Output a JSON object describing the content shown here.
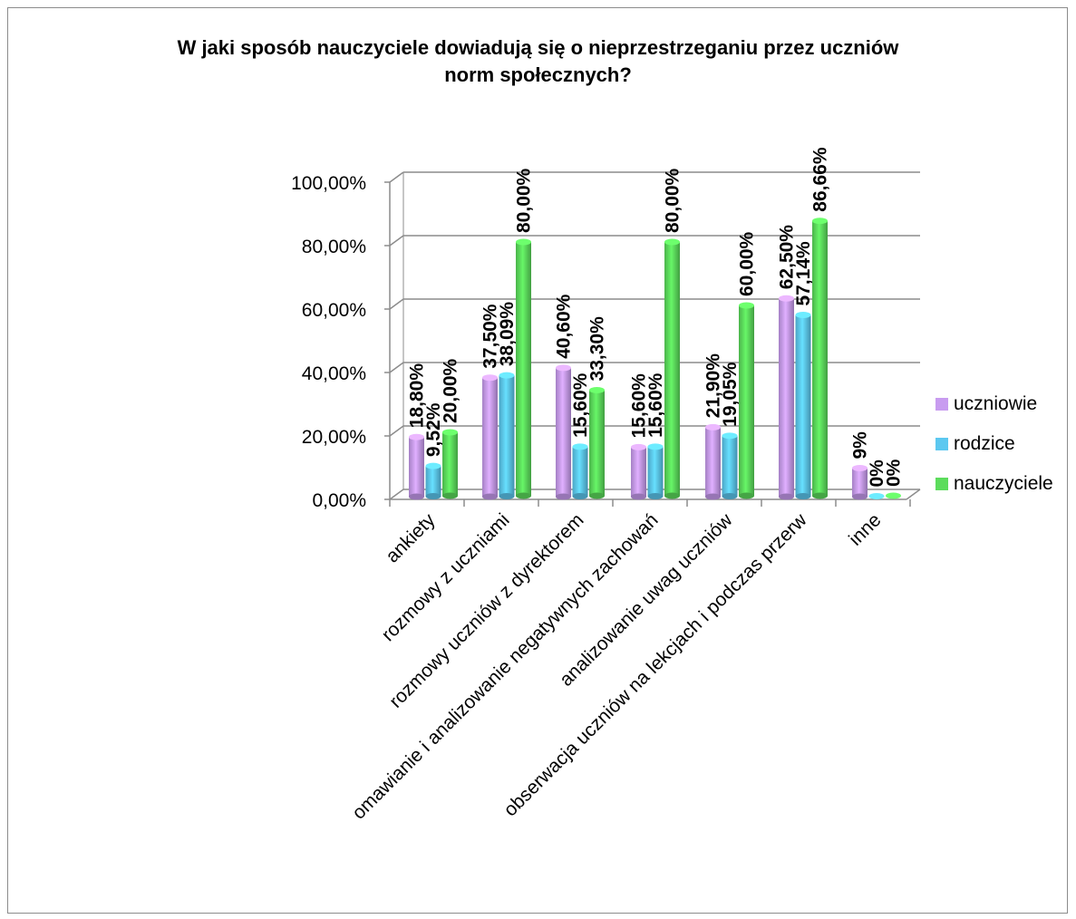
{
  "title_line1": "W jaki sposób nauczyciele dowiadują się o nieprzestrzeganiu przez uczniów",
  "title_line2": "norm społecznych?",
  "chart_data": {
    "type": "bar",
    "title": "W jaki sposób nauczyciele dowiadują się o nieprzestrzeganiu przez uczniów norm społecznych?",
    "categories": [
      "ankiety",
      "rozmowy z uczniami",
      "rozmowy uczniów z dyrektorem",
      "omawianie i analizowanie negatywnych zachowań",
      "analizowanie uwag uczniów",
      "obserwacja uczniów na lekcjach i podczas przerw",
      "inne"
    ],
    "series": [
      {
        "name": "uczniowie",
        "color": "#c89cf0",
        "values": [
          18.8,
          37.5,
          40.6,
          15.6,
          21.9,
          62.5,
          9
        ],
        "labels": [
          "18,80%",
          "37,50%",
          "40,60%",
          "15,60%",
          "21,90%",
          "62,50%",
          "9%"
        ]
      },
      {
        "name": "rodzice",
        "color": "#5cc8f0",
        "values": [
          9.52,
          38.09,
          15.6,
          15.6,
          19.05,
          57.14,
          0
        ],
        "labels": [
          "9,52%",
          "38,09%",
          "15,60%",
          "15,60%",
          "19,05%",
          "57,14%",
          "0%"
        ]
      },
      {
        "name": "nauczyciele",
        "color": "#5cdc5c",
        "values": [
          20,
          80,
          33.3,
          80,
          60,
          86.66,
          0
        ],
        "labels": [
          "20,00%",
          "80,00%",
          "33,30%",
          "80,00%",
          "60,00%",
          "86,66%",
          "0%"
        ]
      }
    ],
    "y_ticks": [
      "0,00%",
      "20,00%",
      "40,00%",
      "60,00%",
      "80,00%",
      "100,00%"
    ],
    "ylim": [
      0,
      100
    ],
    "grid": true,
    "legend": "right"
  }
}
